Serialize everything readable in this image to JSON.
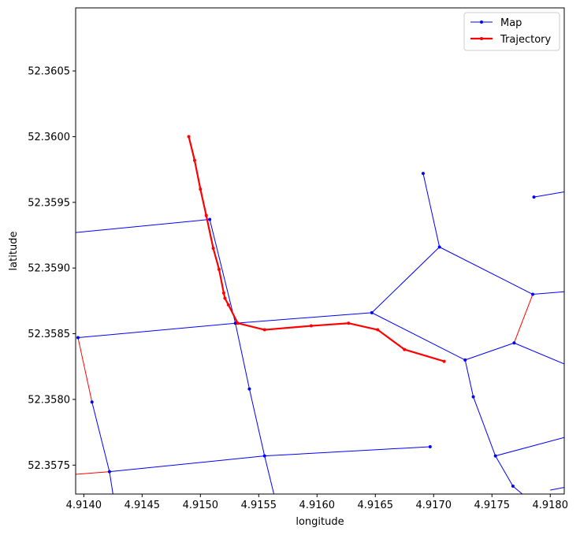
{
  "chart_data": {
    "type": "line",
    "title": "",
    "xlabel": "longitude",
    "ylabel": "latitude",
    "xlim": [
      4.91393,
      4.91812
    ],
    "ylim": [
      52.35728,
      52.36098
    ],
    "grid": false,
    "legend_position": "top-right",
    "x_ticks": [
      4.914,
      4.9145,
      4.915,
      4.9155,
      4.916,
      4.9165,
      4.917,
      4.9175,
      4.918
    ],
    "x_tick_labels": [
      "4.9140",
      "4.9145",
      "4.9150",
      "4.9155",
      "4.9160",
      "4.9165",
      "4.9170",
      "4.9175",
      "4.9180"
    ],
    "y_ticks": [
      52.3575,
      52.358,
      52.3585,
      52.359,
      52.3595,
      52.36,
      52.3605
    ],
    "y_tick_labels": [
      "52.3575",
      "52.3580",
      "52.3585",
      "52.3590",
      "52.3595",
      "52.3600",
      "52.3605"
    ],
    "series": [
      {
        "name": "Map",
        "color": "#0000ff",
        "segments": [
          [
            [
              4.91393,
              52.35927
            ],
            [
              4.91508,
              52.35937
            ]
          ],
          [
            [
              4.91508,
              52.35937
            ],
            [
              4.9153,
              52.35858
            ]
          ],
          [
            [
              4.9153,
              52.35858
            ],
            [
              4.91542,
              52.35808
            ]
          ],
          [
            [
              4.91542,
              52.35808
            ],
            [
              4.91555,
              52.35757
            ]
          ],
          [
            [
              4.91555,
              52.35757
            ],
            [
              4.91563,
              52.35728
            ]
          ],
          [
            [
              4.91395,
              52.35847
            ],
            [
              4.9153,
              52.35858
            ]
          ],
          [
            [
              4.9153,
              52.35858
            ],
            [
              4.91647,
              52.35866
            ]
          ],
          [
            [
              4.91647,
              52.35866
            ],
            [
              4.91727,
              52.3583
            ]
          ],
          [
            [
              4.91647,
              52.35866
            ],
            [
              4.91705,
              52.35916
            ]
          ],
          [
            [
              4.91691,
              52.35972
            ],
            [
              4.91705,
              52.35916
            ]
          ],
          [
            [
              4.91705,
              52.35916
            ],
            [
              4.91785,
              52.3588
            ]
          ],
          [
            [
              4.91785,
              52.3588
            ],
            [
              4.91812,
              52.35882
            ]
          ],
          [
            [
              4.91727,
              52.3583
            ],
            [
              4.91769,
              52.35843
            ]
          ],
          [
            [
              4.91769,
              52.35843
            ],
            [
              4.91812,
              52.35827
            ]
          ],
          [
            [
              4.91727,
              52.3583
            ],
            [
              4.91734,
              52.35802
            ]
          ],
          [
            [
              4.91734,
              52.35802
            ],
            [
              4.91753,
              52.35757
            ]
          ],
          [
            [
              4.91753,
              52.35757
            ],
            [
              4.91768,
              52.35734
            ]
          ],
          [
            [
              4.91768,
              52.35734
            ],
            [
              4.91776,
              52.35728
            ]
          ],
          [
            [
              4.91753,
              52.35757
            ],
            [
              4.91812,
              52.35771
            ]
          ],
          [
            [
              4.91786,
              52.35954
            ],
            [
              4.91812,
              52.35958
            ]
          ],
          [
            [
              4.91407,
              52.35798
            ],
            [
              4.91422,
              52.35745
            ]
          ],
          [
            [
              4.91422,
              52.35745
            ],
            [
              4.91425,
              52.35728
            ]
          ],
          [
            [
              4.91422,
              52.35745
            ],
            [
              4.91555,
              52.35757
            ]
          ],
          [
            [
              4.91555,
              52.35757
            ],
            [
              4.91697,
              52.35764
            ]
          ],
          [
            [
              4.91686,
              52.35728
            ],
            [
              4.91697,
              52.35728
            ]
          ],
          [
            [
              4.918,
              52.35731
            ],
            [
              4.91812,
              52.35733
            ]
          ]
        ],
        "points": [
          [
            4.91508,
            52.35937
          ],
          [
            4.9153,
            52.35858
          ],
          [
            4.91542,
            52.35808
          ],
          [
            4.91555,
            52.35757
          ],
          [
            4.91395,
            52.35847
          ],
          [
            4.91647,
            52.35866
          ],
          [
            4.91727,
            52.3583
          ],
          [
            4.91705,
            52.35916
          ],
          [
            4.91691,
            52.35972
          ],
          [
            4.91785,
            52.3588
          ],
          [
            4.91769,
            52.35843
          ],
          [
            4.91734,
            52.35802
          ],
          [
            4.91753,
            52.35757
          ],
          [
            4.91768,
            52.35734
          ],
          [
            4.91786,
            52.35954
          ],
          [
            4.91407,
            52.35798
          ],
          [
            4.91422,
            52.35745
          ],
          [
            4.91697,
            52.35764
          ]
        ]
      },
      {
        "name": "",
        "color": "#ff0000",
        "segments": [
          [
            [
              4.91395,
              52.35847
            ],
            [
              4.91407,
              52.35798
            ]
          ],
          [
            [
              4.91393,
              52.35743
            ],
            [
              4.91422,
              52.35745
            ]
          ],
          [
            [
              4.91769,
              52.35843
            ],
            [
              4.91785,
              52.3588
            ]
          ]
        ],
        "points": []
      },
      {
        "name": "Trajectory",
        "color": "#ff0000",
        "points": [
          [
            4.9149,
            52.36
          ],
          [
            4.91495,
            52.35982
          ],
          [
            4.915,
            52.3596
          ],
          [
            4.91505,
            52.3594
          ],
          [
            4.91511,
            52.35915
          ],
          [
            4.91516,
            52.35899
          ],
          [
            4.9152,
            52.35881
          ],
          [
            4.91521,
            52.35877
          ],
          [
            4.91524,
            52.35872
          ],
          [
            4.91532,
            52.35858
          ],
          [
            4.91555,
            52.35853
          ],
          [
            4.91595,
            52.35856
          ],
          [
            4.91627,
            52.35858
          ],
          [
            4.91652,
            52.35853
          ],
          [
            4.91675,
            52.35838
          ],
          [
            4.91709,
            52.35829
          ]
        ]
      }
    ]
  }
}
